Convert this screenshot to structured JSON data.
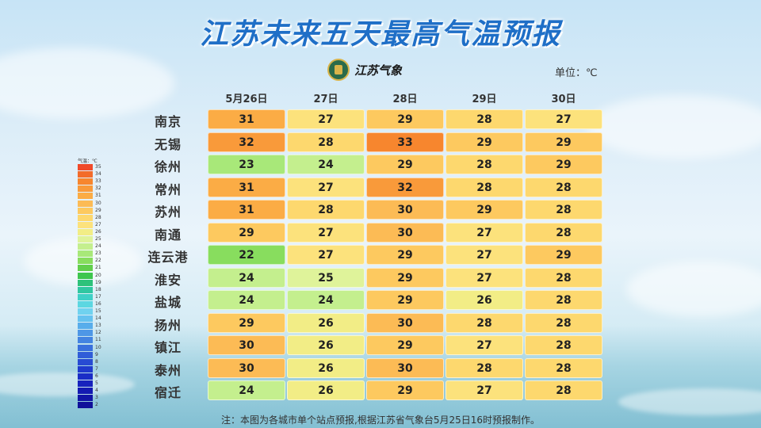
{
  "title": "江苏未来五天最高气温预报",
  "logo_text": "江苏气象",
  "unit": "单位：℃",
  "legend_title": "气温：℃",
  "note": "注：本图为各城市单个站点预报,根据江苏省气象台5月25日16时预报制作。",
  "days": [
    "5月26日",
    "27日",
    "28日",
    "29日",
    "30日"
  ],
  "cities": [
    "南京",
    "无锡",
    "徐州",
    "常州",
    "苏州",
    "南通",
    "连云港",
    "淮安",
    "盐城",
    "扬州",
    "镇江",
    "泰州",
    "宿迁"
  ],
  "temps": [
    [
      "31",
      "27",
      "29",
      "28",
      "27"
    ],
    [
      "32",
      "28",
      "33",
      "29",
      "29"
    ],
    [
      "23",
      "24",
      "29",
      "28",
      "29"
    ],
    [
      "31",
      "27",
      "32",
      "28",
      "28"
    ],
    [
      "31",
      "28",
      "30",
      "29",
      "28"
    ],
    [
      "29",
      "27",
      "30",
      "27",
      "28"
    ],
    [
      "22",
      "27",
      "29",
      "27",
      "29"
    ],
    [
      "24",
      "25",
      "29",
      "27",
      "28"
    ],
    [
      "24",
      "24",
      "29",
      "26",
      "28"
    ],
    [
      "29",
      "26",
      "30",
      "28",
      "28"
    ],
    [
      "30",
      "26",
      "29",
      "27",
      "28"
    ],
    [
      "30",
      "26",
      "30",
      "28",
      "28"
    ],
    [
      "24",
      "26",
      "29",
      "27",
      "28"
    ]
  ],
  "legend_values": [
    "35",
    "34",
    "33",
    "32",
    "31",
    "30",
    "29",
    "28",
    "27",
    "26",
    "25",
    "24",
    "23",
    "22",
    "21",
    "20",
    "19",
    "18",
    "17",
    "16",
    "15",
    "14",
    "13",
    "12",
    "11",
    "10",
    "9",
    "8",
    "7",
    "6",
    "5",
    "4",
    "3",
    "2"
  ],
  "legend_colors": [
    "#f04a2a",
    "#f36b2a",
    "#f7862e",
    "#f99a3a",
    "#fbac45",
    "#fcbb55",
    "#fdc95f",
    "#fdd86e",
    "#fce27c",
    "#f2ed86",
    "#dff39a",
    "#c4ef8e",
    "#a8e879",
    "#88dd5e",
    "#62cf4c",
    "#3ec64e",
    "#2dc27a",
    "#30c7a1",
    "#3fd0c6",
    "#5cd7e1",
    "#70d2ef",
    "#66c2ef",
    "#58adeb",
    "#4e97e6",
    "#4484e1",
    "#3a70dd",
    "#305dd8",
    "#274bd3",
    "#1f3acd",
    "#1a2dc6",
    "#1722bd",
    "#141ab2",
    "#1215a6",
    "#10119a"
  ]
}
